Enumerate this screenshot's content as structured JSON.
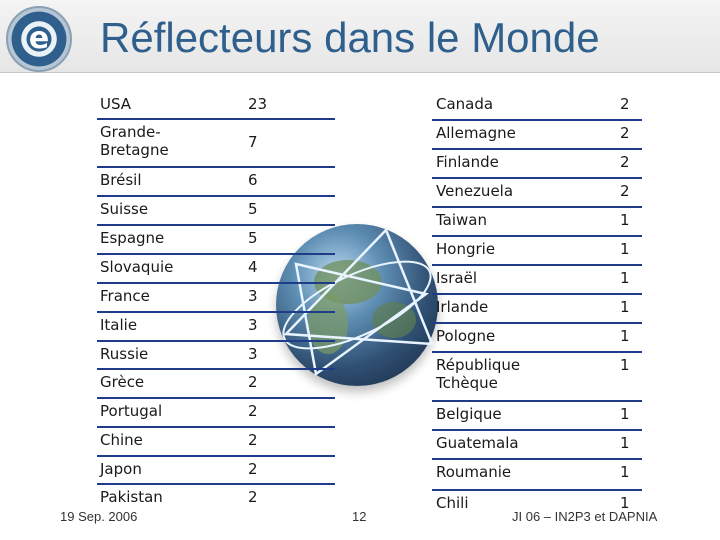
{
  "title": "Réflecteurs dans le Monde",
  "logo_letter": "e",
  "left": [
    {
      "country": "USA",
      "count": "23"
    },
    {
      "country": "Grande-\nBretagne",
      "count": "7"
    },
    {
      "country": "Brésil",
      "count": "6"
    },
    {
      "country": "Suisse",
      "count": "5"
    },
    {
      "country": "Espagne",
      "count": "5"
    },
    {
      "country": "Slovaquie",
      "count": "4"
    },
    {
      "country": "France",
      "count": "3"
    },
    {
      "country": "Italie",
      "count": "3"
    },
    {
      "country": "Russie",
      "count": "3"
    },
    {
      "country": "Grèce",
      "count": "2"
    },
    {
      "country": "Portugal",
      "count": "2"
    },
    {
      "country": "Chine",
      "count": "2"
    },
    {
      "country": "Japon",
      "count": "2"
    },
    {
      "country": "Pakistan",
      "count": "2"
    }
  ],
  "right": [
    {
      "country": "Canada",
      "count": "2"
    },
    {
      "country": "Allemagne",
      "count": "2"
    },
    {
      "country": "Finlande",
      "count": "2"
    },
    {
      "country": "Venezuela",
      "count": "2"
    },
    {
      "country": "Taiwan",
      "count": "1"
    },
    {
      "country": "Hongrie",
      "count": "1"
    },
    {
      "country": "Israël",
      "count": "1"
    },
    {
      "country": "Irlande",
      "count": "1"
    },
    {
      "country": "Pologne",
      "count": "1"
    },
    {
      "country": "République\nTchèque",
      "count": "1"
    },
    {
      "country": "Belgique",
      "count": "1"
    },
    {
      "country": "Guatemala",
      "count": "1"
    },
    {
      "country": "Roumanie",
      "count": "1"
    },
    {
      "country": "Chili",
      "count": "1"
    }
  ],
  "footer": {
    "date": "19 Sep. 2006",
    "page": "12",
    "event": "JI 06 – IN2P3 et DAPNIA"
  },
  "colors": {
    "title": "#2f5f8c",
    "rule": "#1f3c88"
  }
}
